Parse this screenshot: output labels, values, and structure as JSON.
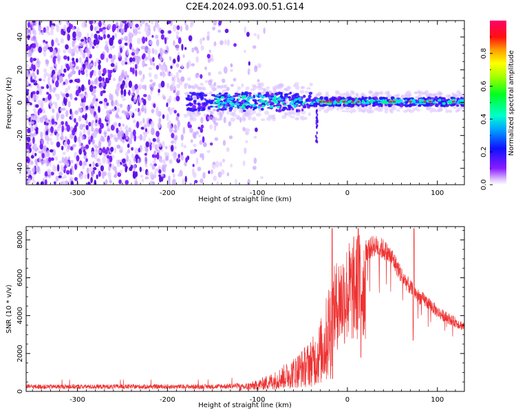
{
  "figure": {
    "title": "C2E4.2024.093.00.51.G14"
  },
  "chart_data": [
    {
      "type": "heatmap",
      "xlabel": "Height of straight line (km)",
      "ylabel": "Frequency (Hz)",
      "xlim": [
        -357,
        130
      ],
      "ylim": [
        -50,
        50
      ],
      "xticks": [
        -300,
        -200,
        -100,
        0,
        100
      ],
      "xtick_labels": [
        "-300",
        "-200",
        "-100",
        "0",
        "100"
      ],
      "yticks": [
        -40,
        -20,
        0,
        20,
        40
      ],
      "ytick_labels": [
        "-40",
        "-20",
        "0",
        "20",
        "40"
      ],
      "colorbar": {
        "label": "Normalized spectral amplitude",
        "range": [
          0,
          1
        ],
        "ticks": [
          0.0,
          0.2,
          0.4,
          0.6,
          0.8
        ],
        "tick_labels": [
          "0.0",
          "0.2",
          "0.4",
          "0.6",
          "0.8"
        ],
        "colormap": "gist_rainbow_r"
      },
      "features": {
        "noise_region_x": [
          -357,
          -115
        ],
        "carrier_start_x": -178,
        "carrier_frequency": 0.5,
        "spike_x": -34,
        "spike_freq_range": [
          -25,
          5
        ]
      },
      "grid": false
    },
    {
      "type": "line",
      "xlabel": "Height of straight line (km)",
      "ylabel": "SNR (10 * v/v)",
      "xlim": [
        -357,
        130
      ],
      "ylim": [
        0,
        8700
      ],
      "xticks": [
        -300,
        -200,
        -100,
        0,
        100
      ],
      "xtick_labels": [
        "-300",
        "-200",
        "-100",
        "0",
        "100"
      ],
      "yticks": [
        0,
        2000,
        4000,
        6000,
        8000
      ],
      "ytick_labels": [
        "0",
        "2000",
        "4000",
        "6000",
        "8000"
      ],
      "series": [
        {
          "color": "#ee3333",
          "envelope_x": [
            -357,
            -150,
            -120,
            -100,
            -80,
            -60,
            -45,
            -35,
            -25,
            -20,
            -17,
            -10,
            0,
            10,
            20,
            30,
            40,
            50,
            60,
            70,
            80,
            90,
            100,
            110,
            120,
            130
          ],
          "envelope_y": [
            250,
            250,
            300,
            500,
            900,
            1500,
            2100,
            2600,
            3800,
            5200,
            5500,
            6300,
            6900,
            7300,
            7600,
            7900,
            7700,
            7200,
            6300,
            5600,
            5100,
            4800,
            4300,
            4000,
            3750,
            3500
          ],
          "peaks": [
            {
              "x": -17,
              "y": 8600
            },
            {
              "x": 12,
              "y": 8600
            },
            {
              "x": 74,
              "y": 8600
            },
            {
              "x": 15,
              "y": 1800
            },
            {
              "x": 73,
              "y": 2700
            }
          ]
        }
      ],
      "grid": false
    }
  ]
}
